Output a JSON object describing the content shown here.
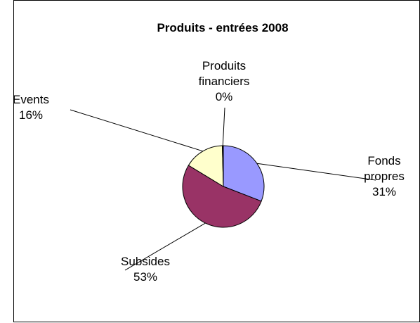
{
  "chart_data": {
    "type": "pie",
    "title": "Produits - entrées 2008",
    "slices": [
      {
        "label": [
          "Fonds",
          "propres"
        ],
        "percent_label": "31%",
        "value": 31,
        "color": "#9999ff"
      },
      {
        "label": [
          "Subsides"
        ],
        "percent_label": "53%",
        "value": 53,
        "color": "#993366"
      },
      {
        "label": [
          "Events"
        ],
        "percent_label": "16%",
        "value": 16,
        "color": "#ffffcc"
      },
      {
        "label": [
          "Produits",
          "financiers"
        ],
        "percent_label": "0%",
        "value": 0.4,
        "color": "#000000"
      }
    ],
    "legend": "none"
  }
}
